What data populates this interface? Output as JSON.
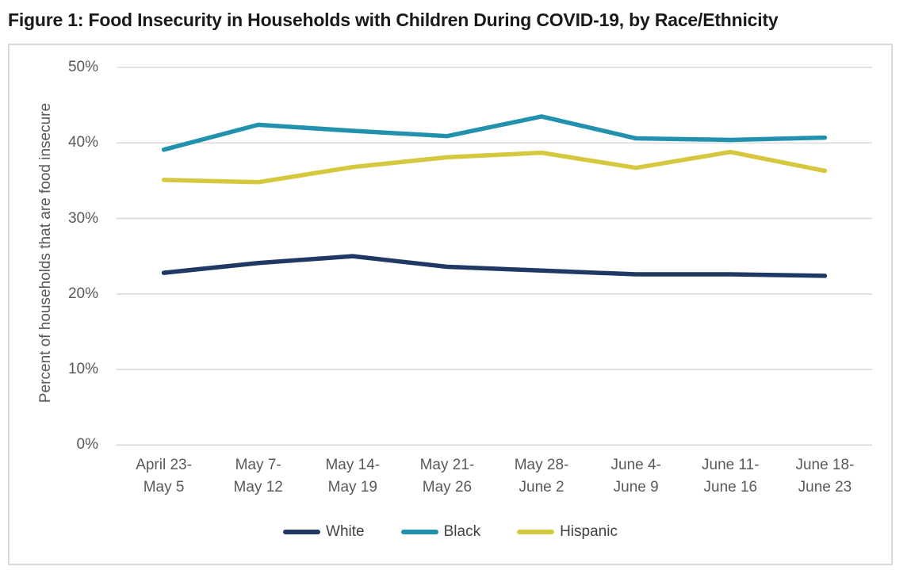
{
  "figure": {
    "title": "Figure 1: Food Insecurity in Households with Children During COVID-19, by Race/Ethnicity"
  },
  "colors": {
    "series_white": "#1F3864",
    "series_black": "#2191AE",
    "series_hispanic": "#D6C83E",
    "gridline": "#D9D9D9",
    "box_border": "#D9D9D9",
    "axis_text": "#595959",
    "legend_text": "#424242",
    "title_text": "#1A1A1A"
  },
  "chart_data": {
    "type": "line",
    "title": "Figure 1: Food Insecurity in Households with Children During COVID-19, by Race/Ethnicity",
    "xlabel": "",
    "ylabel": "Percent of households that are food insecure",
    "ylim": [
      0,
      50
    ],
    "ytick_values": [
      0,
      10,
      20,
      30,
      40,
      50
    ],
    "ytick_labels": [
      "0%",
      "10%",
      "20%",
      "30%",
      "40%",
      "50%"
    ],
    "grid": true,
    "legend_position": "bottom",
    "categories": [
      [
        "April 23-",
        "May 5"
      ],
      [
        "May 7-",
        "May 12"
      ],
      [
        "May 14-",
        "May 19"
      ],
      [
        "May 21-",
        "May 26"
      ],
      [
        "May 28-",
        "June 2"
      ],
      [
        "June 4-",
        "June 9"
      ],
      [
        "June 11-",
        "June 16"
      ],
      [
        "June 18-",
        "June 23"
      ]
    ],
    "series": [
      {
        "name": "White",
        "color": "#1F3864",
        "values": [
          22.8,
          24.1,
          25.0,
          23.6,
          23.1,
          22.6,
          22.6,
          22.4
        ]
      },
      {
        "name": "Black",
        "color": "#2191AE",
        "values": [
          39.1,
          42.4,
          41.6,
          40.9,
          43.5,
          40.6,
          40.4,
          40.7
        ]
      },
      {
        "name": "Hispanic",
        "color": "#D6C83E",
        "values": [
          35.1,
          34.8,
          36.8,
          38.1,
          38.7,
          36.7,
          38.8,
          36.3
        ]
      }
    ]
  }
}
